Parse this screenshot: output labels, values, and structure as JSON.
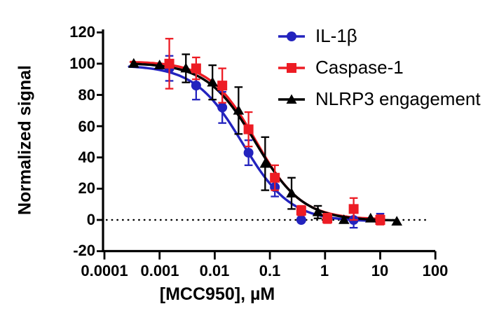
{
  "figure": {
    "background": "#ffffff",
    "axis_color": "#000000"
  },
  "chart_data": {
    "type": "scatter",
    "subtype": "dose-response inhibition curves with error bars",
    "title": "",
    "xlabel": "[MCC950], µM",
    "ylabel": "Normalized signal",
    "x_scale": "log10",
    "xlim": [
      0.0001,
      100
    ],
    "ylim": [
      -20,
      120
    ],
    "x_ticks": [
      0.0001,
      0.001,
      0.01,
      0.1,
      1,
      10,
      100
    ],
    "x_tick_labels": [
      "0.0001",
      "0.001",
      "0.01",
      "0.1",
      "1",
      "10",
      "100"
    ],
    "y_ticks": [
      120,
      100,
      80,
      60,
      40,
      20,
      0,
      -20
    ],
    "y_tick_labels": [
      "120",
      "100",
      "80",
      "60",
      "40",
      "20",
      "0",
      "-20"
    ],
    "grid": "off",
    "zero_line": {
      "y": 0,
      "style": "dotted",
      "color": "#000000"
    },
    "legend_position": "top-right-inside",
    "series": [
      {
        "name": "IL-1β",
        "marker": "circle",
        "color": "#2323BE",
        "x": [
          0.0015,
          0.0046,
          0.0137,
          0.041,
          0.123,
          0.37,
          1.1,
          3.3,
          10
        ],
        "y": [
          97,
          86,
          72,
          43,
          21,
          0,
          1,
          0,
          1
        ],
        "err": [
          8,
          9,
          10,
          8,
          6,
          0,
          0,
          5,
          3
        ],
        "fit": {
          "top": 99,
          "bottom": -1,
          "ic50": 0.032,
          "hill": 1.0,
          "x_start": 0.00028,
          "x_end": 10.3
        }
      },
      {
        "name": "Caspase-1",
        "marker": "square",
        "color": "#ED1C24",
        "x": [
          0.0015,
          0.0046,
          0.0137,
          0.041,
          0.123,
          0.37,
          1.1,
          3.3,
          10
        ],
        "y": [
          100,
          97,
          86,
          58,
          27,
          6,
          1,
          7,
          0
        ],
        "err": [
          16,
          7,
          11,
          11,
          8,
          3,
          3,
          7,
          3
        ],
        "fit": {
          "top": 101.5,
          "bottom": 0.3,
          "ic50": 0.055,
          "hill": 1.05,
          "x_start": 0.0003,
          "x_end": 10.3
        }
      },
      {
        "name": "NLRP3 engagement",
        "marker": "triangle",
        "color": "#000000",
        "x": [
          0.00034,
          0.001,
          0.003,
          0.0091,
          0.027,
          0.082,
          0.247,
          0.74,
          2.2,
          6.7,
          20
        ],
        "y": [
          100,
          99,
          97,
          88,
          70,
          36,
          17,
          5,
          0,
          1,
          -1
        ],
        "err": [
          0,
          0,
          9,
          11,
          15,
          17,
          10,
          4,
          0,
          0,
          0
        ],
        "fit": {
          "top": 100.5,
          "bottom": -0.5,
          "ic50": 0.054,
          "hill": 1.0,
          "x_start": 0.00033,
          "x_end": 20.5
        }
      }
    ]
  }
}
